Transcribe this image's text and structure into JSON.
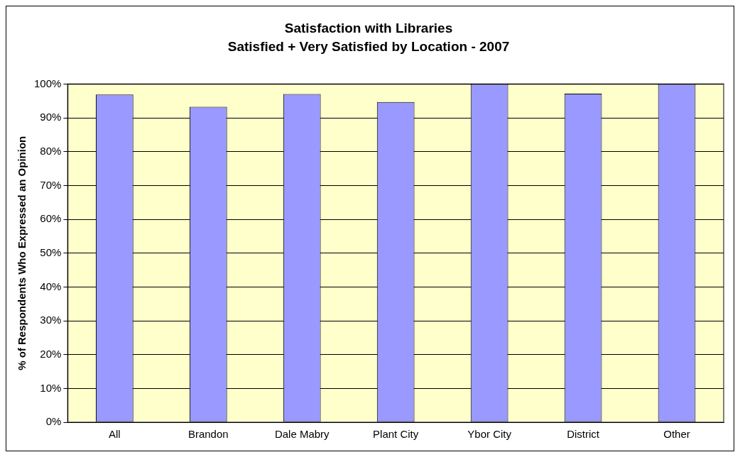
{
  "chart_data": {
    "type": "bar",
    "title": "Satisfaction with Libraries",
    "subtitle": "Satisfied + Very Satisfied by Location - 2007",
    "ylabel": "% of Respondents Who Expressed an Opinion",
    "categories": [
      "All",
      "Brandon",
      "Dale Mabry",
      "Plant City",
      "Ybor City",
      "District",
      "Other"
    ],
    "values": [
      96.9,
      93.3,
      97.1,
      94.7,
      100,
      97.2,
      100
    ],
    "color": "#9999ff",
    "ylim": [
      0,
      100
    ],
    "yticks": [
      {
        "value": 0,
        "label": "0%"
      },
      {
        "value": 10,
        "label": "10%"
      },
      {
        "value": 20,
        "label": "20%"
      },
      {
        "value": 30,
        "label": "30%"
      },
      {
        "value": 40,
        "label": "40%"
      },
      {
        "value": 50,
        "label": "50%"
      },
      {
        "value": 60,
        "label": "60%"
      },
      {
        "value": 70,
        "label": "70%"
      },
      {
        "value": 80,
        "label": "80%"
      },
      {
        "value": 90,
        "label": "90%"
      },
      {
        "value": 100,
        "label": "100%"
      }
    ],
    "grid": "y",
    "legend": false
  }
}
